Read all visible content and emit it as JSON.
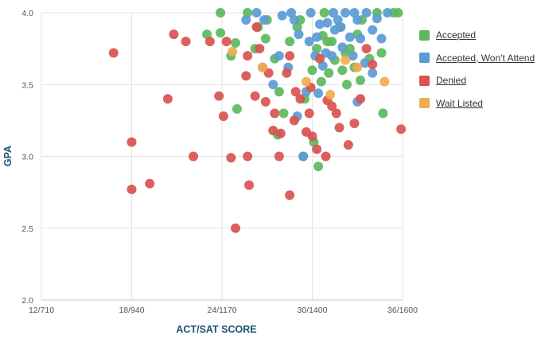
{
  "chart_data": {
    "type": "scatter",
    "xlabel": "ACT/SAT SCORE",
    "ylabel": "GPA",
    "xlim": [
      12,
      36
    ],
    "ylim": [
      2.0,
      4.0
    ],
    "x_ticks": [
      {
        "value": 12,
        "label": "12/710"
      },
      {
        "value": 18,
        "label": "18/940"
      },
      {
        "value": 24,
        "label": "24/1170"
      },
      {
        "value": 30,
        "label": "30/1400"
      },
      {
        "value": 36,
        "label": "36/1600"
      }
    ],
    "y_ticks": [
      {
        "value": 2.0,
        "label": "2.0"
      },
      {
        "value": 2.5,
        "label": "2.5"
      },
      {
        "value": 3.0,
        "label": "3.0"
      },
      {
        "value": 3.5,
        "label": "3.5"
      },
      {
        "value": 4.0,
        "label": "4.0"
      }
    ],
    "grid": true,
    "legend_position": "right",
    "series": [
      {
        "name": "Accepted",
        "color": "#5cb85c",
        "points": [
          [
            23.9,
            4.0
          ],
          [
            23.0,
            3.85
          ],
          [
            23.9,
            3.86
          ],
          [
            24.6,
            3.7
          ],
          [
            24.9,
            3.79
          ],
          [
            25.7,
            4.0
          ],
          [
            26.2,
            3.75
          ],
          [
            26.4,
            3.9
          ],
          [
            27.0,
            3.95
          ],
          [
            27.5,
            3.68
          ],
          [
            27.8,
            3.45
          ],
          [
            28.1,
            3.3
          ],
          [
            28.5,
            3.8
          ],
          [
            29.0,
            3.9
          ],
          [
            29.4,
            3.0
          ],
          [
            29.5,
            3.4
          ],
          [
            30.0,
            3.6
          ],
          [
            30.3,
            3.75
          ],
          [
            30.4,
            2.93
          ],
          [
            30.1,
            3.1
          ],
          [
            30.6,
            3.52
          ],
          [
            30.8,
            4.0
          ],
          [
            31.0,
            3.8
          ],
          [
            31.3,
            3.8
          ],
          [
            31.5,
            3.67
          ],
          [
            31.8,
            3.9
          ],
          [
            32.0,
            3.6
          ],
          [
            32.3,
            3.5
          ],
          [
            32.5,
            3.75
          ],
          [
            32.8,
            3.62
          ],
          [
            33.0,
            3.85
          ],
          [
            33.3,
            3.95
          ],
          [
            33.8,
            3.68
          ],
          [
            34.3,
            4.0
          ],
          [
            34.6,
            3.72
          ],
          [
            34.7,
            3.3
          ],
          [
            35.4,
            4.0
          ],
          [
            35.7,
            4.0
          ],
          [
            26.9,
            3.82
          ],
          [
            25.0,
            3.33
          ],
          [
            29.2,
            3.95
          ],
          [
            31.1,
            3.58
          ],
          [
            33.2,
            3.53
          ],
          [
            32.2,
            3.72
          ],
          [
            30.7,
            3.84
          ],
          [
            27.7,
            3.15
          ]
        ]
      },
      {
        "name": "Accepted, Won't Attend",
        "color": "#5b9bd5",
        "points": [
          [
            25.6,
            3.95
          ],
          [
            26.3,
            4.0
          ],
          [
            26.8,
            3.95
          ],
          [
            27.4,
            3.5
          ],
          [
            27.8,
            3.7
          ],
          [
            28.0,
            3.98
          ],
          [
            28.4,
            3.62
          ],
          [
            28.8,
            3.95
          ],
          [
            29.1,
            3.85
          ],
          [
            29.6,
            3.45
          ],
          [
            29.9,
            4.0
          ],
          [
            30.2,
            3.7
          ],
          [
            30.3,
            3.83
          ],
          [
            30.5,
            3.92
          ],
          [
            30.7,
            3.63
          ],
          [
            31.0,
            3.93
          ],
          [
            31.3,
            3.7
          ],
          [
            31.5,
            3.88
          ],
          [
            31.7,
            3.95
          ],
          [
            32.0,
            3.76
          ],
          [
            32.2,
            4.0
          ],
          [
            32.5,
            3.83
          ],
          [
            32.7,
            3.7
          ],
          [
            33.0,
            3.95
          ],
          [
            33.2,
            3.82
          ],
          [
            33.5,
            3.65
          ],
          [
            33.6,
            4.0
          ],
          [
            34.0,
            3.88
          ],
          [
            34.3,
            3.96
          ],
          [
            34.6,
            3.82
          ],
          [
            35.0,
            4.0
          ],
          [
            29.0,
            3.28
          ],
          [
            29.4,
            3.0
          ],
          [
            30.4,
            3.44
          ],
          [
            33.0,
            3.38
          ],
          [
            34.0,
            3.58
          ],
          [
            32.8,
            4.0
          ],
          [
            31.9,
            3.9
          ],
          [
            29.8,
            3.8
          ],
          [
            31.4,
            4.0
          ],
          [
            28.6,
            4.0
          ],
          [
            30.9,
            3.72
          ]
        ]
      },
      {
        "name": "Denied",
        "color": "#d9534f",
        "points": [
          [
            16.8,
            3.72
          ],
          [
            18.0,
            3.1
          ],
          [
            18.0,
            2.77
          ],
          [
            19.2,
            2.81
          ],
          [
            20.4,
            3.4
          ],
          [
            20.8,
            3.85
          ],
          [
            21.6,
            3.8
          ],
          [
            22.1,
            3.0
          ],
          [
            23.2,
            3.8
          ],
          [
            23.8,
            3.42
          ],
          [
            24.1,
            3.28
          ],
          [
            24.3,
            3.8
          ],
          [
            24.6,
            2.99
          ],
          [
            24.9,
            2.5
          ],
          [
            25.7,
            3.0
          ],
          [
            25.8,
            2.8
          ],
          [
            25.6,
            3.56
          ],
          [
            25.7,
            3.7
          ],
          [
            26.3,
            3.9
          ],
          [
            26.5,
            3.75
          ],
          [
            26.9,
            3.38
          ],
          [
            27.1,
            3.58
          ],
          [
            27.5,
            3.3
          ],
          [
            27.8,
            3.0
          ],
          [
            27.9,
            3.16
          ],
          [
            28.3,
            3.58
          ],
          [
            28.5,
            3.7
          ],
          [
            28.5,
            2.73
          ],
          [
            28.9,
            3.45
          ],
          [
            29.2,
            3.4
          ],
          [
            29.6,
            3.17
          ],
          [
            29.8,
            3.3
          ],
          [
            29.9,
            3.48
          ],
          [
            30.0,
            3.14
          ],
          [
            30.3,
            3.05
          ],
          [
            30.5,
            3.68
          ],
          [
            31.0,
            3.39
          ],
          [
            31.3,
            3.35
          ],
          [
            31.6,
            3.3
          ],
          [
            31.8,
            3.2
          ],
          [
            32.4,
            3.08
          ],
          [
            32.8,
            3.23
          ],
          [
            33.2,
            3.4
          ],
          [
            33.6,
            3.75
          ],
          [
            34.0,
            3.64
          ],
          [
            35.9,
            3.19
          ],
          [
            26.2,
            3.42
          ],
          [
            27.4,
            3.18
          ],
          [
            28.8,
            3.25
          ],
          [
            30.9,
            3.0
          ],
          [
            26.7,
            3.62
          ]
        ]
      },
      {
        "name": "Wait Listed",
        "color": "#f0ad4e",
        "points": [
          [
            24.7,
            3.73
          ],
          [
            26.7,
            3.62
          ],
          [
            29.6,
            3.52
          ],
          [
            31.2,
            3.43
          ],
          [
            33.0,
            3.62
          ],
          [
            34.8,
            3.52
          ],
          [
            32.2,
            3.67
          ]
        ]
      }
    ]
  }
}
